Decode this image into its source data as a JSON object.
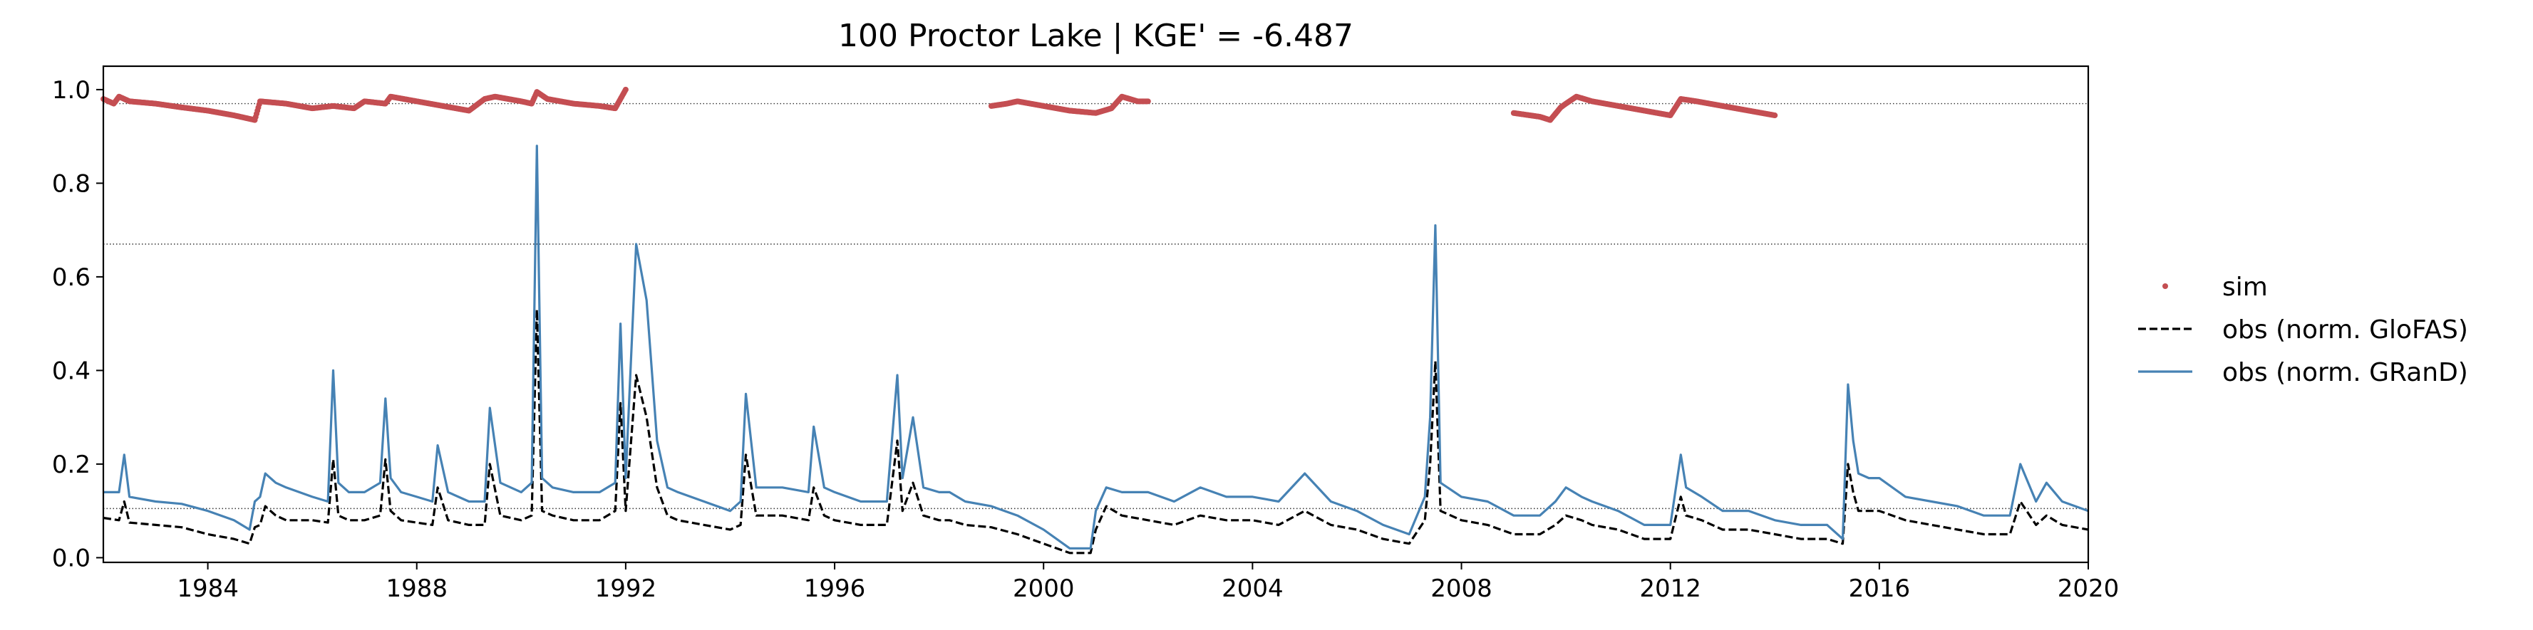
{
  "chart_data": {
    "type": "line",
    "title": "100  Proctor Lake | KGE' = -6.487",
    "xlabel": "",
    "ylabel": "",
    "xlim": [
      1982.0,
      2020.0
    ],
    "ylim": [
      -0.01,
      1.05
    ],
    "x_ticks": [
      1984,
      1988,
      1992,
      1996,
      2000,
      2004,
      2008,
      2012,
      2016,
      2020
    ],
    "x_tick_labels": [
      "1984",
      "1988",
      "1992",
      "1996",
      "2000",
      "2004",
      "2008",
      "2012",
      "2016",
      "2020"
    ],
    "y_ticks": [
      0.0,
      0.2,
      0.4,
      0.6,
      0.8,
      1.0
    ],
    "y_tick_labels": [
      "0.0",
      "0.2",
      "0.4",
      "0.6",
      "0.8",
      "1.0"
    ],
    "reference_lines": [
      0.97,
      0.67,
      0.105
    ],
    "grid": false,
    "legend_position": "right, outside plot",
    "series": [
      {
        "name": "sim",
        "style": "dots",
        "color": "#c44e52",
        "segments": [
          {
            "x": [
              1982.0,
              1982.2,
              1982.3,
              1982.5,
              1983.0,
              1983.5,
              1984.0,
              1984.5,
              1984.9,
              1985.0,
              1985.5,
              1986.0,
              1986.4,
              1986.8,
              1987.0,
              1987.4,
              1987.5,
              1988.0,
              1988.5,
              1989.0,
              1989.3,
              1989.5,
              1990.0,
              1990.2,
              1990.3,
              1990.5,
              1991.0,
              1991.5,
              1991.8,
              1991.9,
              1992.0
            ],
            "y": [
              0.98,
              0.97,
              0.985,
              0.975,
              0.97,
              0.962,
              0.955,
              0.945,
              0.935,
              0.975,
              0.97,
              0.96,
              0.965,
              0.96,
              0.975,
              0.97,
              0.985,
              0.975,
              0.965,
              0.955,
              0.98,
              0.985,
              0.975,
              0.97,
              0.995,
              0.98,
              0.97,
              0.965,
              0.96,
              0.98,
              1.0
            ]
          },
          {
            "x": [
              1999.0,
              1999.3,
              1999.5,
              2000.0,
              2000.5,
              2001.0,
              2001.3,
              2001.5,
              2001.8,
              2002.0
            ],
            "y": [
              0.965,
              0.97,
              0.975,
              0.965,
              0.955,
              0.95,
              0.96,
              0.985,
              0.975,
              0.975
            ]
          },
          {
            "x": [
              2009.0,
              2009.5,
              2009.7,
              2009.9,
              2010.0,
              2010.2,
              2010.5,
              2011.0,
              2011.5,
              2012.0,
              2012.2,
              2012.5,
              2013.0,
              2013.5,
              2014.0
            ],
            "y": [
              0.95,
              0.942,
              0.935,
              0.962,
              0.97,
              0.985,
              0.975,
              0.965,
              0.955,
              0.945,
              0.98,
              0.975,
              0.965,
              0.955,
              0.945
            ]
          }
        ]
      },
      {
        "name": "obs (norm. GloFAS)",
        "style": "dashed",
        "color": "#000000",
        "x": [
          1982.0,
          1982.3,
          1982.4,
          1982.5,
          1983.0,
          1983.5,
          1984.0,
          1984.5,
          1984.8,
          1984.9,
          1985.0,
          1985.1,
          1985.3,
          1985.5,
          1986.0,
          1986.3,
          1986.4,
          1986.5,
          1986.7,
          1987.0,
          1987.3,
          1987.4,
          1987.5,
          1987.7,
          1988.0,
          1988.3,
          1988.4,
          1988.6,
          1989.0,
          1989.3,
          1989.4,
          1989.6,
          1990.0,
          1990.2,
          1990.3,
          1990.4,
          1990.6,
          1991.0,
          1991.5,
          1991.8,
          1991.9,
          1992.0,
          1992.2,
          1992.4,
          1992.6,
          1992.8,
          1993.0,
          1993.5,
          1994.0,
          1994.2,
          1994.3,
          1994.5,
          1995.0,
          1995.5,
          1995.6,
          1995.8,
          1996.0,
          1996.5,
          1997.0,
          1997.2,
          1997.3,
          1997.5,
          1997.7,
          1998.0,
          1998.2,
          1998.5,
          1999.0,
          1999.5,
          2000.0,
          2000.5,
          2000.9,
          2001.0,
          2001.2,
          2001.5,
          2002.0,
          2002.5,
          2003.0,
          2003.5,
          2004.0,
          2004.5,
          2005.0,
          2005.5,
          2006.0,
          2006.5,
          2007.0,
          2007.3,
          2007.4,
          2007.5,
          2007.6,
          2008.0,
          2008.5,
          2009.0,
          2009.5,
          2009.8,
          2010.0,
          2010.3,
          2010.5,
          2011.0,
          2011.5,
          2012.0,
          2012.2,
          2012.3,
          2012.6,
          2013.0,
          2013.5,
          2014.0,
          2014.5,
          2015.0,
          2015.3,
          2015.4,
          2015.5,
          2015.6,
          2015.8,
          2016.0,
          2016.5,
          2017.0,
          2017.5,
          2018.0,
          2018.5,
          2018.7,
          2019.0,
          2019.2,
          2019.5,
          2020.0
        ],
        "y": [
          0.085,
          0.08,
          0.12,
          0.075,
          0.07,
          0.065,
          0.05,
          0.04,
          0.03,
          0.065,
          0.07,
          0.11,
          0.09,
          0.08,
          0.08,
          0.075,
          0.21,
          0.09,
          0.08,
          0.08,
          0.09,
          0.21,
          0.1,
          0.08,
          0.075,
          0.07,
          0.15,
          0.08,
          0.07,
          0.07,
          0.2,
          0.09,
          0.08,
          0.09,
          0.53,
          0.1,
          0.09,
          0.08,
          0.08,
          0.1,
          0.33,
          0.1,
          0.39,
          0.3,
          0.15,
          0.09,
          0.08,
          0.07,
          0.06,
          0.07,
          0.22,
          0.09,
          0.09,
          0.08,
          0.15,
          0.09,
          0.08,
          0.07,
          0.07,
          0.25,
          0.1,
          0.16,
          0.09,
          0.08,
          0.08,
          0.07,
          0.065,
          0.05,
          0.03,
          0.01,
          0.01,
          0.06,
          0.11,
          0.09,
          0.08,
          0.07,
          0.09,
          0.08,
          0.08,
          0.07,
          0.1,
          0.07,
          0.06,
          0.04,
          0.03,
          0.08,
          0.2,
          0.42,
          0.1,
          0.08,
          0.07,
          0.05,
          0.05,
          0.07,
          0.09,
          0.08,
          0.07,
          0.06,
          0.04,
          0.04,
          0.13,
          0.09,
          0.08,
          0.06,
          0.06,
          0.05,
          0.04,
          0.04,
          0.03,
          0.2,
          0.14,
          0.1,
          0.1,
          0.1,
          0.08,
          0.07,
          0.06,
          0.05,
          0.05,
          0.12,
          0.07,
          0.09,
          0.07,
          0.06
        ]
      },
      {
        "name": "obs (norm. GRanD)",
        "style": "solid",
        "color": "#4682b4",
        "x": [
          1982.0,
          1982.3,
          1982.4,
          1982.5,
          1983.0,
          1983.5,
          1984.0,
          1984.5,
          1984.8,
          1984.9,
          1985.0,
          1985.1,
          1985.3,
          1985.5,
          1986.0,
          1986.3,
          1986.4,
          1986.5,
          1986.7,
          1987.0,
          1987.3,
          1987.4,
          1987.5,
          1987.7,
          1988.0,
          1988.3,
          1988.4,
          1988.6,
          1989.0,
          1989.3,
          1989.4,
          1989.6,
          1990.0,
          1990.2,
          1990.3,
          1990.4,
          1990.6,
          1991.0,
          1991.5,
          1991.8,
          1991.9,
          1992.0,
          1992.2,
          1992.4,
          1992.6,
          1992.8,
          1993.0,
          1993.5,
          1994.0,
          1994.2,
          1994.3,
          1994.5,
          1995.0,
          1995.5,
          1995.6,
          1995.8,
          1996.0,
          1996.5,
          1997.0,
          1997.2,
          1997.3,
          1997.5,
          1997.7,
          1998.0,
          1998.2,
          1998.5,
          1999.0,
          1999.5,
          2000.0,
          2000.5,
          2000.9,
          2001.0,
          2001.2,
          2001.5,
          2002.0,
          2002.5,
          2003.0,
          2003.5,
          2004.0,
          2004.5,
          2005.0,
          2005.5,
          2006.0,
          2006.5,
          2007.0,
          2007.3,
          2007.4,
          2007.5,
          2007.6,
          2008.0,
          2008.5,
          2009.0,
          2009.5,
          2009.8,
          2010.0,
          2010.3,
          2010.5,
          2011.0,
          2011.5,
          2012.0,
          2012.2,
          2012.3,
          2012.6,
          2013.0,
          2013.5,
          2014.0,
          2014.5,
          2015.0,
          2015.3,
          2015.4,
          2015.5,
          2015.6,
          2015.8,
          2016.0,
          2016.5,
          2017.0,
          2017.5,
          2018.0,
          2018.5,
          2018.7,
          2019.0,
          2019.2,
          2019.5,
          2020.0
        ],
        "y": [
          0.14,
          0.14,
          0.22,
          0.13,
          0.12,
          0.115,
          0.1,
          0.08,
          0.06,
          0.12,
          0.13,
          0.18,
          0.16,
          0.15,
          0.13,
          0.12,
          0.4,
          0.16,
          0.14,
          0.14,
          0.16,
          0.34,
          0.17,
          0.14,
          0.13,
          0.12,
          0.24,
          0.14,
          0.12,
          0.12,
          0.32,
          0.16,
          0.14,
          0.16,
          0.88,
          0.17,
          0.15,
          0.14,
          0.14,
          0.16,
          0.5,
          0.17,
          0.67,
          0.55,
          0.25,
          0.15,
          0.14,
          0.12,
          0.1,
          0.12,
          0.35,
          0.15,
          0.15,
          0.14,
          0.28,
          0.15,
          0.14,
          0.12,
          0.12,
          0.39,
          0.17,
          0.3,
          0.15,
          0.14,
          0.14,
          0.12,
          0.11,
          0.09,
          0.06,
          0.02,
          0.02,
          0.1,
          0.15,
          0.14,
          0.14,
          0.12,
          0.15,
          0.13,
          0.13,
          0.12,
          0.18,
          0.12,
          0.1,
          0.07,
          0.05,
          0.13,
          0.3,
          0.71,
          0.16,
          0.13,
          0.12,
          0.09,
          0.09,
          0.12,
          0.15,
          0.13,
          0.12,
          0.1,
          0.07,
          0.07,
          0.22,
          0.15,
          0.13,
          0.1,
          0.1,
          0.08,
          0.07,
          0.07,
          0.04,
          0.37,
          0.25,
          0.18,
          0.17,
          0.17,
          0.13,
          0.12,
          0.11,
          0.09,
          0.09,
          0.2,
          0.12,
          0.16,
          0.12,
          0.1
        ]
      }
    ]
  }
}
